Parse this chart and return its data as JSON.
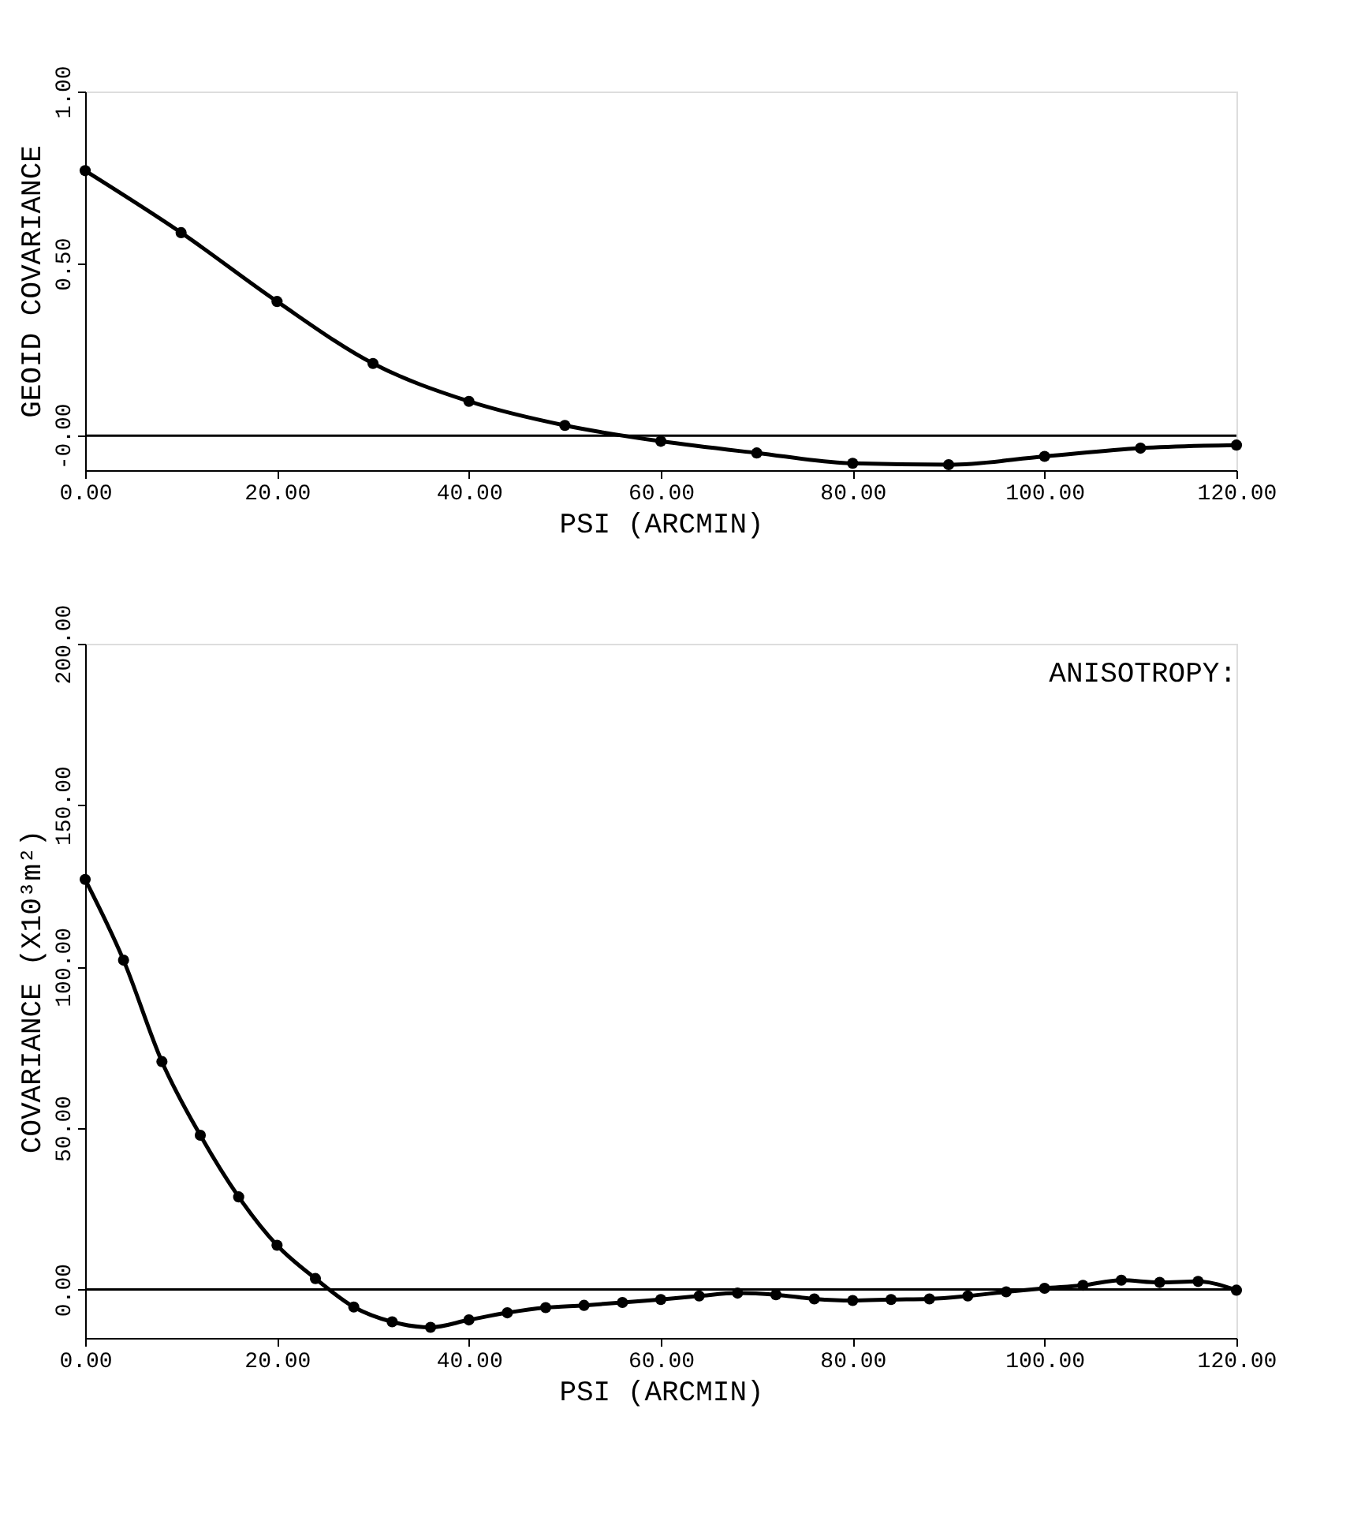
{
  "chart_data": [
    {
      "type": "line",
      "xlabel": "PSI  (ARCMIN)",
      "ylabel": "GEOID COVARIANCE",
      "x": [
        0,
        10,
        20,
        30,
        40,
        50,
        60,
        70,
        80,
        90,
        100,
        110,
        120
      ],
      "series": [
        {
          "color": "#000000",
          "values": [
            0.77,
            0.59,
            0.39,
            0.21,
            0.1,
            0.03,
            -0.016,
            -0.05,
            -0.08,
            -0.084,
            -0.06,
            -0.036,
            -0.027
          ]
        }
      ],
      "xlim": [
        0,
        120
      ],
      "ylim": [
        -0.1,
        1.0
      ],
      "xticks": [
        {
          "value": 0,
          "label": "0.00"
        },
        {
          "value": 20,
          "label": "20.00"
        },
        {
          "value": 40,
          "label": "40.00"
        },
        {
          "value": 60,
          "label": "60.00"
        },
        {
          "value": 80,
          "label": "80.00"
        },
        {
          "value": 100,
          "label": "100.00"
        },
        {
          "value": 120,
          "label": "120.00"
        }
      ],
      "yticks": [
        {
          "value": 0,
          "label": "-0.00"
        },
        {
          "value": 0.5,
          "label": "0.50"
        },
        {
          "value": 1.0,
          "label": "1.00"
        }
      ],
      "ref_lines": [
        {
          "axis": "y",
          "value": 0,
          "color": "#000000",
          "line_style": "solid"
        }
      ],
      "grid": false,
      "marker": "circle",
      "line_style": "solid"
    },
    {
      "type": "line",
      "xlabel": "PSI  (ARCMIN)",
      "ylabel": "COVARIANCE  (X10³m²)",
      "x": [
        0,
        4,
        8,
        12,
        16,
        20,
        24,
        28,
        32,
        36,
        40,
        44,
        48,
        52,
        56,
        60,
        64,
        68,
        72,
        76,
        80,
        84,
        88,
        92,
        96,
        100,
        104,
        108,
        112,
        116,
        120
      ],
      "series": [
        {
          "color": "#000000",
          "values": [
            127,
            102,
            70.6,
            47.8,
            28.7,
            13.7,
            3.4,
            -5.4,
            -10,
            -11.7,
            -9.4,
            -7.2,
            -5.6,
            -4.9,
            -4,
            -3.1,
            -2,
            -1.1,
            -1.6,
            -2.9,
            -3.4,
            -3.1,
            -2.9,
            -2,
            -0.7,
            0.4,
            1.3,
            2.9,
            2.2,
            2.5,
            -0.2
          ]
        }
      ],
      "xlim": [
        0,
        120
      ],
      "ylim": [
        -15,
        200
      ],
      "xticks": [
        {
          "value": 0,
          "label": "0.00"
        },
        {
          "value": 20,
          "label": "20.00"
        },
        {
          "value": 40,
          "label": "40.00"
        },
        {
          "value": 60,
          "label": "60.00"
        },
        {
          "value": 80,
          "label": "80.00"
        },
        {
          "value": 100,
          "label": "100.00"
        },
        {
          "value": 120,
          "label": "120.00"
        }
      ],
      "yticks": [
        {
          "value": 0,
          "label": "0.00"
        },
        {
          "value": 50,
          "label": "50.00"
        },
        {
          "value": 100,
          "label": "100.00"
        },
        {
          "value": 150,
          "label": "150.00"
        },
        {
          "value": 200,
          "label": "200.00"
        }
      ],
      "ref_lines": [
        {
          "axis": "y",
          "value": 0,
          "color": "#000000",
          "line_style": "solid"
        }
      ],
      "annotations": [
        "ANISOTROPY:"
      ],
      "grid": false,
      "marker": "circle",
      "line_style": "solid"
    }
  ]
}
